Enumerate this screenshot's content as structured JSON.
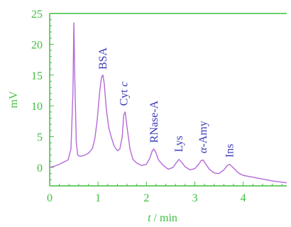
{
  "chart_data": {
    "type": "line",
    "title": "",
    "xlabel": "t / min",
    "xlabel_italic": "t",
    "xlabel_rest": " / min",
    "ylabel": "mV",
    "xlim": [
      0,
      4.9
    ],
    "ylim": [
      -3,
      25
    ],
    "x_ticks": [
      0,
      1,
      2,
      3,
      4
    ],
    "y_ticks": [
      0,
      5,
      10,
      15,
      20,
      25
    ],
    "grid": false,
    "legend": "none",
    "colors": {
      "axis": "#3fbf3f",
      "trace": "#b569d8",
      "annotation": "#3a3ab8"
    },
    "series": [
      {
        "x": [
          0.0,
          0.1,
          0.2,
          0.3,
          0.38,
          0.44,
          0.48,
          0.5,
          0.52,
          0.55,
          0.58,
          0.62,
          0.7,
          0.8,
          0.88,
          0.93,
          0.98,
          1.03,
          1.07,
          1.1,
          1.13,
          1.17,
          1.22,
          1.27,
          1.33,
          1.4,
          1.45,
          1.5,
          1.53,
          1.56,
          1.6,
          1.66,
          1.72,
          1.8,
          1.9,
          2.0,
          2.07,
          2.12,
          2.15,
          2.19,
          2.25,
          2.35,
          2.45,
          2.55,
          2.62,
          2.67,
          2.72,
          2.8,
          2.9,
          3.0,
          3.08,
          3.13,
          3.17,
          3.23,
          3.3,
          3.4,
          3.5,
          3.6,
          3.67,
          3.72,
          3.8,
          3.9,
          4.0,
          4.2,
          4.4,
          4.6,
          4.8,
          4.9
        ],
        "y": [
          0.0,
          0.2,
          0.5,
          0.9,
          1.2,
          3.0,
          12.0,
          23.5,
          14.0,
          4.0,
          2.0,
          1.8,
          1.9,
          2.3,
          3.0,
          4.5,
          7.5,
          12.0,
          14.6,
          15.0,
          13.5,
          9.5,
          6.5,
          5.0,
          3.5,
          2.7,
          3.0,
          5.0,
          8.5,
          9.0,
          6.5,
          3.0,
          1.3,
          0.7,
          0.3,
          0.5,
          1.5,
          2.7,
          3.0,
          2.5,
          1.2,
          0.3,
          -0.3,
          0.0,
          0.8,
          1.3,
          0.9,
          0.1,
          -0.4,
          -0.2,
          0.5,
          1.1,
          1.2,
          0.5,
          -0.3,
          -0.9,
          -1.0,
          -0.4,
          0.3,
          0.5,
          -0.1,
          -0.9,
          -1.3,
          -1.6,
          -1.9,
          -2.2,
          -2.4,
          -2.5
        ]
      }
    ],
    "annotations": [
      {
        "text": "BSA",
        "x": 1.1,
        "y": 15.2
      },
      {
        "text": "Cyt ",
        "italic": "c",
        "x": 1.53,
        "y": 9.3
      },
      {
        "text": "RNase-A",
        "x": 2.16,
        "y": 3.3
      },
      {
        "text": "Lys",
        "x": 2.67,
        "y": 1.8
      },
      {
        "text": "-Amy",
        "italic_prefix": "α",
        "x": 3.17,
        "y": 1.6
      },
      {
        "text": "Ins",
        "x": 3.72,
        "y": 0.9
      }
    ]
  }
}
